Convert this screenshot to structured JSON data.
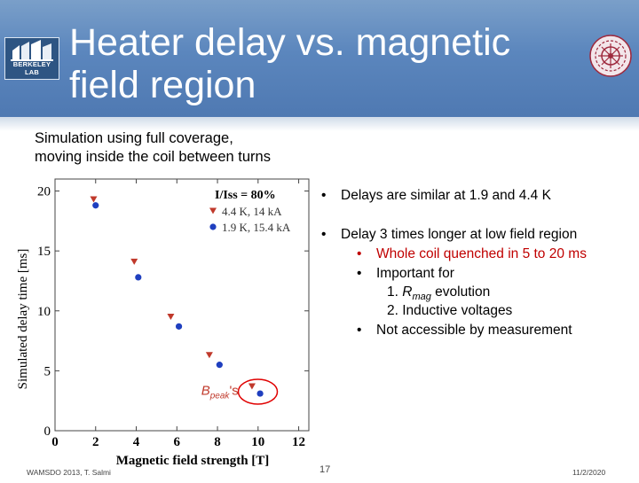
{
  "slide": {
    "title_line1": "Heater delay vs. magnetic",
    "title_line2": "field region",
    "logo_left_text": "BERKELEY LAB",
    "subtitle_line1": "Simulation using full coverage,",
    "subtitle_line2": "moving inside the coil between turns"
  },
  "bullets": [
    {
      "level": 1,
      "text": "Delays are similar at 1.9 and 4.4 K",
      "color": "#000000"
    },
    {
      "level": 1,
      "text": "Delay 3 times longer at low field region",
      "color": "#000000"
    },
    {
      "level": 2,
      "text": "Whole coil quenched in 5 to 20 ms",
      "color": "#c00000"
    },
    {
      "level": 2,
      "text": "Important for",
      "color": "#000000"
    },
    {
      "level": 3,
      "num": "1.",
      "pre": "R",
      "sub": "mag",
      "post": " evolution",
      "color": "#000000"
    },
    {
      "level": 3,
      "num": "2.",
      "text": "Inductive voltages",
      "color": "#000000"
    },
    {
      "level": 2,
      "text": "Not accessible by measurement",
      "color": "#000000"
    }
  ],
  "footer": {
    "left": "WAMSDO 2013, T. Salmi",
    "page": "17",
    "date": "11/2/2020"
  },
  "chart_data": {
    "type": "scatter",
    "xlabel": "Magnetic field strength [T]",
    "ylabel": "Simulated delay time [ms]",
    "xlim": [
      0,
      12.5
    ],
    "ylim": [
      0,
      21
    ],
    "xticks": [
      0,
      2,
      4,
      6,
      8,
      10,
      12
    ],
    "xtick_labels": [
      "0",
      "2",
      "4",
      "6",
      "8",
      "10",
      "12"
    ],
    "yticks": [
      0,
      5,
      10,
      15,
      20
    ],
    "ytick_labels": [
      "0",
      "5",
      "10",
      "15",
      "20"
    ],
    "grid": false,
    "legend_title": "I/Iss = 80%",
    "legend_position": "top-right",
    "series": [
      {
        "name": "4.4 K, 14 kA",
        "marker": "triangle-down",
        "color": "#c0392b",
        "x": [
          1.9,
          3.9,
          5.7,
          7.6,
          9.7
        ],
        "y": [
          19.3,
          14.1,
          9.5,
          6.3,
          3.7
        ]
      },
      {
        "name": "1.9 K, 15.4 kA",
        "marker": "circle",
        "color": "#1f3fbf",
        "x": [
          2.0,
          4.1,
          6.1,
          8.1,
          10.1
        ],
        "y": [
          18.8,
          12.8,
          8.7,
          5.5,
          3.1
        ]
      }
    ],
    "annotation": {
      "base": "B",
      "sub": "peak",
      "suffix": "'s",
      "color": "#c0392b"
    },
    "highlight": {
      "series_index": 0,
      "point_index": 4,
      "color": "#e00000"
    }
  }
}
